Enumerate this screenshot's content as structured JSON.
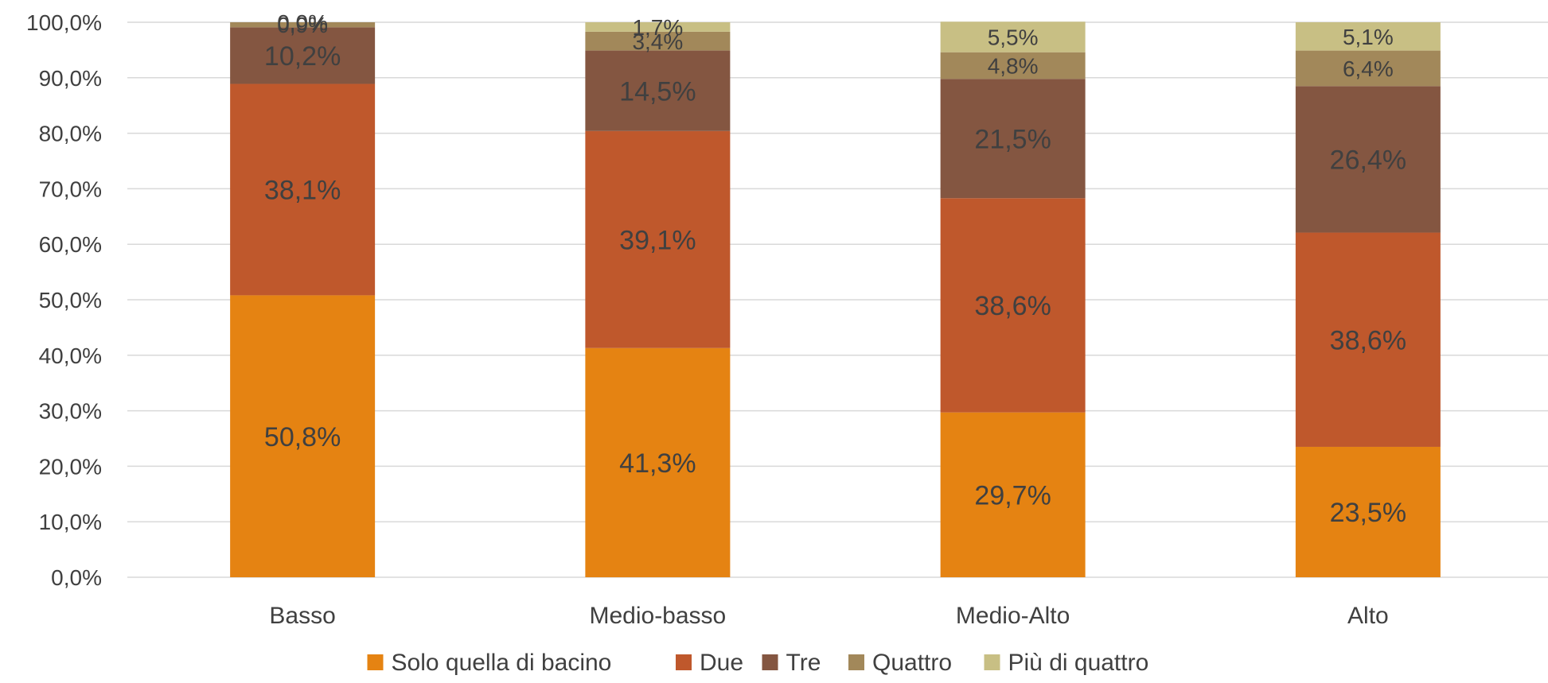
{
  "chart_data": {
    "type": "bar",
    "stacked": true,
    "title": "",
    "xlabel": "",
    "ylabel": "",
    "ylim": [
      0,
      100
    ],
    "ytick_step": 10,
    "yticks": [
      "0,0%",
      "10,0%",
      "20,0%",
      "30,0%",
      "40,0%",
      "50,0%",
      "60,0%",
      "70,0%",
      "80,0%",
      "90,0%",
      "100,0%"
    ],
    "grid": true,
    "legend_position": "bottom",
    "categories": [
      "Basso",
      "Medio-basso",
      "Medio-Alto",
      "Alto"
    ],
    "series": [
      {
        "name": "Solo quella di bacino",
        "color": "#E58312",
        "values": [
          50.8,
          41.3,
          29.7,
          23.5
        ],
        "labels": [
          "50,8%",
          "41,3%",
          "29,7%",
          "23,5%"
        ]
      },
      {
        "name": "Due",
        "color": "#BF582C",
        "values": [
          38.1,
          39.1,
          38.6,
          38.6
        ],
        "labels": [
          "38,1%",
          "39,1%",
          "38,6%",
          "38,6%"
        ]
      },
      {
        "name": "Tre",
        "color": "#845641",
        "values": [
          10.2,
          14.5,
          21.5,
          26.4
        ],
        "labels": [
          "10,2%",
          "14,5%",
          "21,5%",
          "26,4%"
        ]
      },
      {
        "name": "Quattro",
        "color": "#A2885A",
        "values": [
          0.9,
          3.4,
          4.8,
          6.4
        ],
        "labels": [
          "0,9%",
          "3,4%",
          "4,8%",
          "6,4%"
        ]
      },
      {
        "name": "Più di quattro",
        "color": "#C8BF84",
        "values": [
          0.0,
          1.7,
          5.5,
          5.1
        ],
        "labels": [
          "0,0%",
          "1,7%",
          "5,5%",
          "5,1%"
        ]
      }
    ]
  }
}
